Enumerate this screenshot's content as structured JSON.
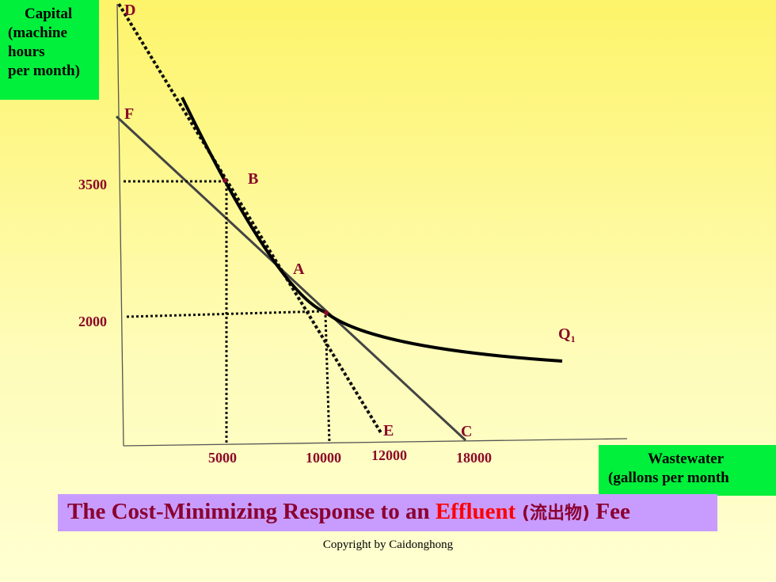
{
  "y_axis_label": [
    "Capital",
    "(machine",
    "hours",
    "per month)"
  ],
  "x_axis_label": [
    "Wastewater",
    "(gallons  per month"
  ],
  "points": {
    "D": "D",
    "F": "F",
    "B": "B",
    "A": "A",
    "E": "E",
    "C": "C",
    "Q": "Q",
    "Q_sub": "1"
  },
  "y_ticks": [
    "3500",
    "2000"
  ],
  "x_ticks": [
    "5000",
    "10000",
    "12000",
    "18000"
  ],
  "title": {
    "part1": "The Cost-Minimizing Response to an ",
    "highlight": "Effluent",
    "chinese": " (流出物)",
    "part2": " Fee"
  },
  "copyright": "Copyright by Caidonghong",
  "colors": {
    "label": "#8b0a28",
    "title": "#8b0030",
    "highlight": "#ff0000",
    "green_box": "#00f03c",
    "title_bg": "#c89cff"
  }
}
